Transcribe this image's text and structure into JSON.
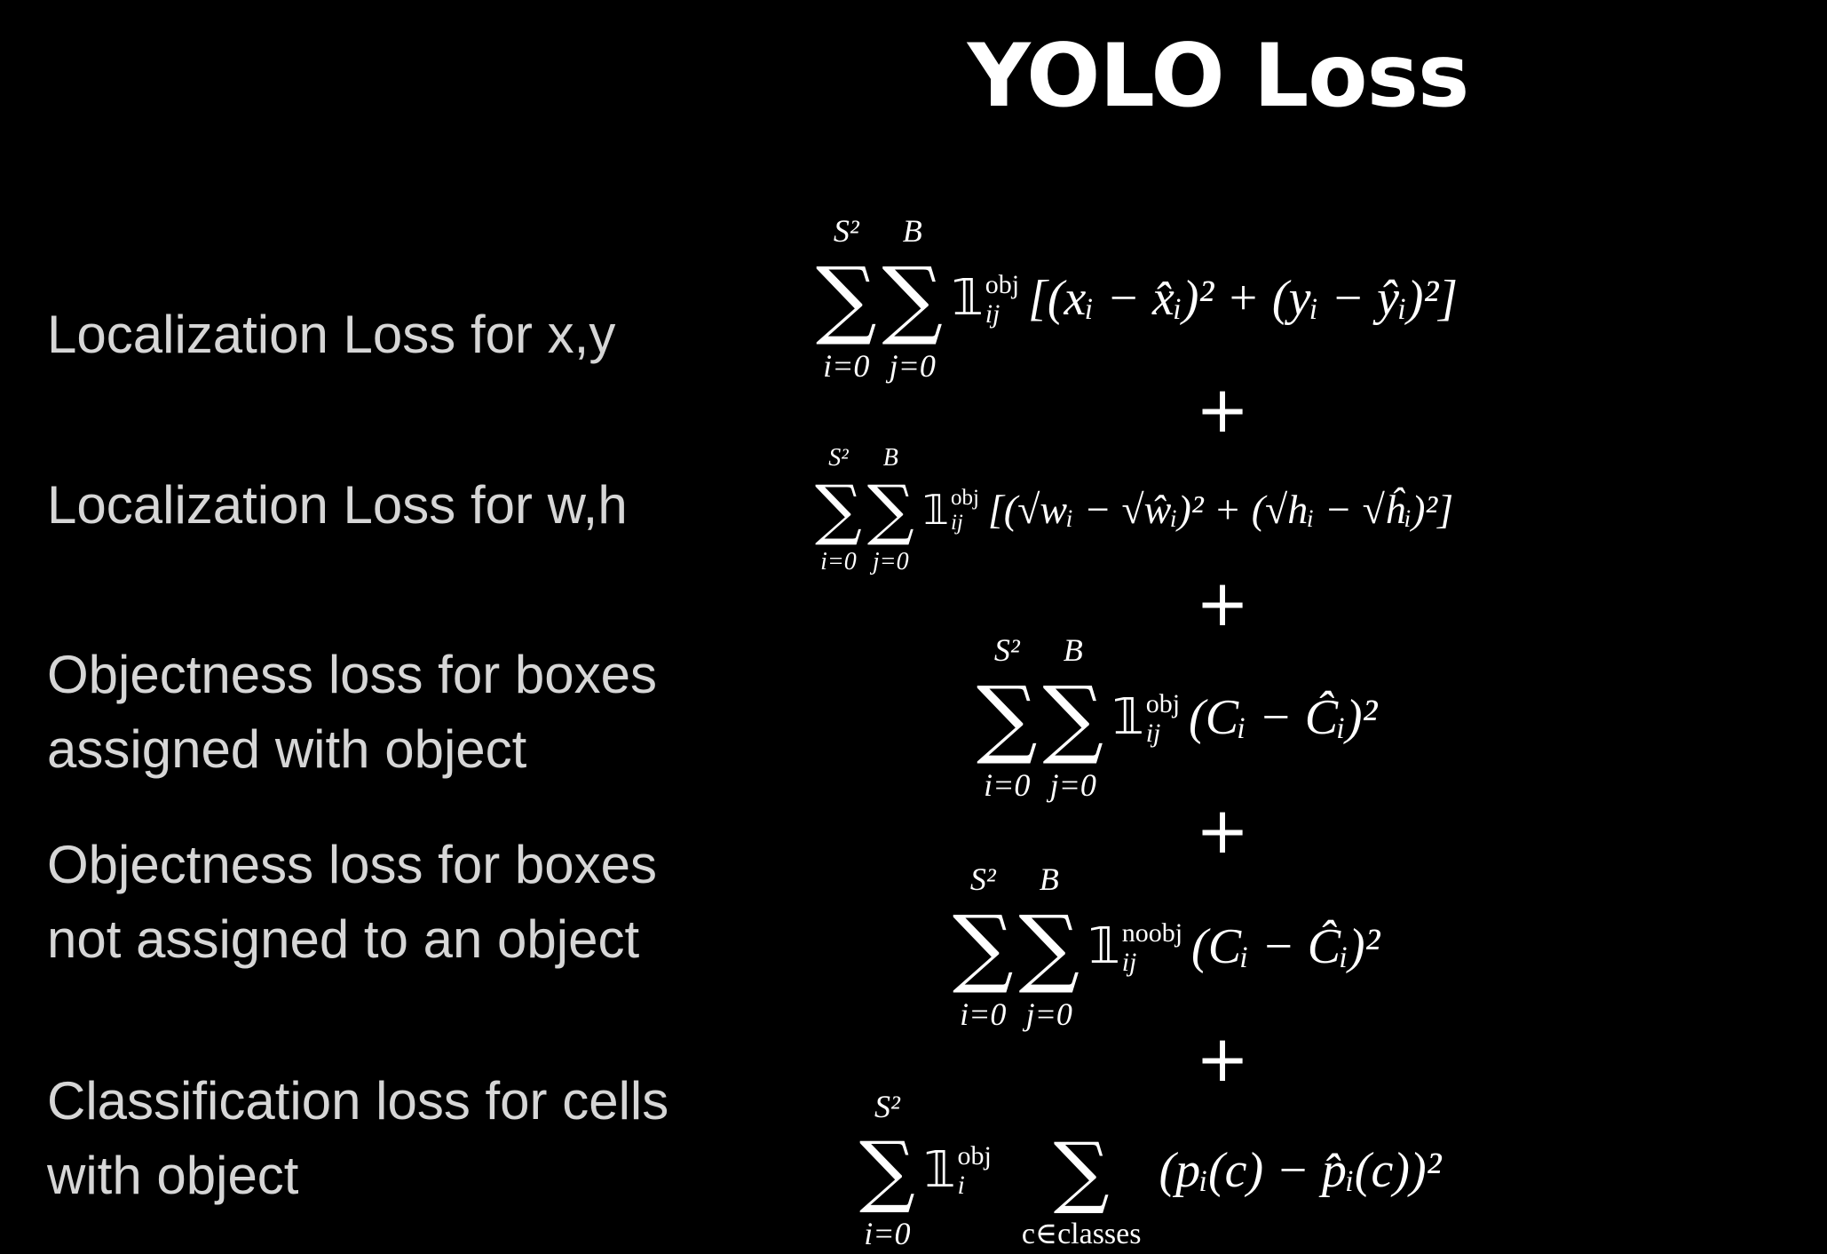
{
  "title": "YOLO Loss",
  "labels": [
    "Localization Loss for x,y",
    "Localization Loss for w,h",
    "Objectness loss for boxes assigned with object",
    "Objectness loss for boxes not assigned to an object",
    "Classification loss for cells with object"
  ],
  "label_lines": {
    "l3a": "Objectness loss for boxes",
    "l3b": "assigned with object",
    "l4a": "Objectness loss for boxes",
    "l4b": "not assigned to an object",
    "l5a": "Classification loss for cells",
    "l5b": "with object"
  },
  "plus": "+",
  "math": {
    "sigma": "∑",
    "indicator": "𝟙",
    "s2": "S²",
    "B": "B",
    "i0": "i=0",
    "j0": "j=0",
    "obj": "obj",
    "noobj": "noobj",
    "ij": "ij",
    "i": "i",
    "c_in_classes": "c∈classes"
  },
  "formulas": {
    "xy": "[(xᵢ − x̂ᵢ)² + (yᵢ − ŷᵢ)²]",
    "wh": "[(√wᵢ − √ŵᵢ)² + (√hᵢ − √ĥᵢ)²]",
    "obj": "(Cᵢ − Ĉᵢ)²",
    "noobj": "(Cᵢ − Ĉᵢ)²",
    "cls": "(pᵢ(c) − p̂ᵢ(c))²"
  }
}
